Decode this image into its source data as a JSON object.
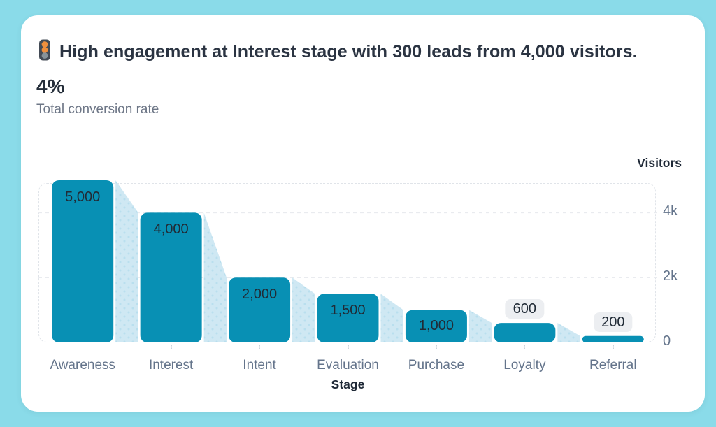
{
  "page": {
    "background_color": "#8adbe9",
    "card_background_color": "#ffffff"
  },
  "header": {
    "icon": "traffic-light",
    "title": "High engagement at Interest stage with 300 leads from 4,000 visitors.",
    "metric_value": "4%",
    "metric_label": "Total conversion rate"
  },
  "chart_data": {
    "type": "bar",
    "variant": "funnel-with-connectors",
    "categories": [
      "Awareness",
      "Interest",
      "Intent",
      "Evaluation",
      "Purchase",
      "Loyalty",
      "Referral"
    ],
    "values": [
      5000,
      4000,
      2000,
      1500,
      1000,
      600,
      200
    ],
    "value_labels": [
      "5,000",
      "4,000",
      "2,000",
      "1,500",
      "1,000",
      "600",
      "200"
    ],
    "xlabel": "Stage",
    "ylabel": "Visitors",
    "ylim": [
      0,
      5000
    ],
    "yticks": [
      {
        "value": 0,
        "label": "0"
      },
      {
        "value": 2000,
        "label": "2k"
      },
      {
        "value": 4000,
        "label": "4k"
      }
    ],
    "grid": "horizontal-dashed",
    "legend": "none",
    "colors": {
      "bar": "#0890b4",
      "connector": "#cfe8f3",
      "connector_dots": "#b9dfee",
      "grid_line": "#e9ebef",
      "plot_border": "#e0e4e9",
      "value_label_text": "#212b36",
      "value_pill_background": "#eceef1",
      "axis_tick_text": "#64748b",
      "axis_title_text": "#1f2937"
    }
  }
}
